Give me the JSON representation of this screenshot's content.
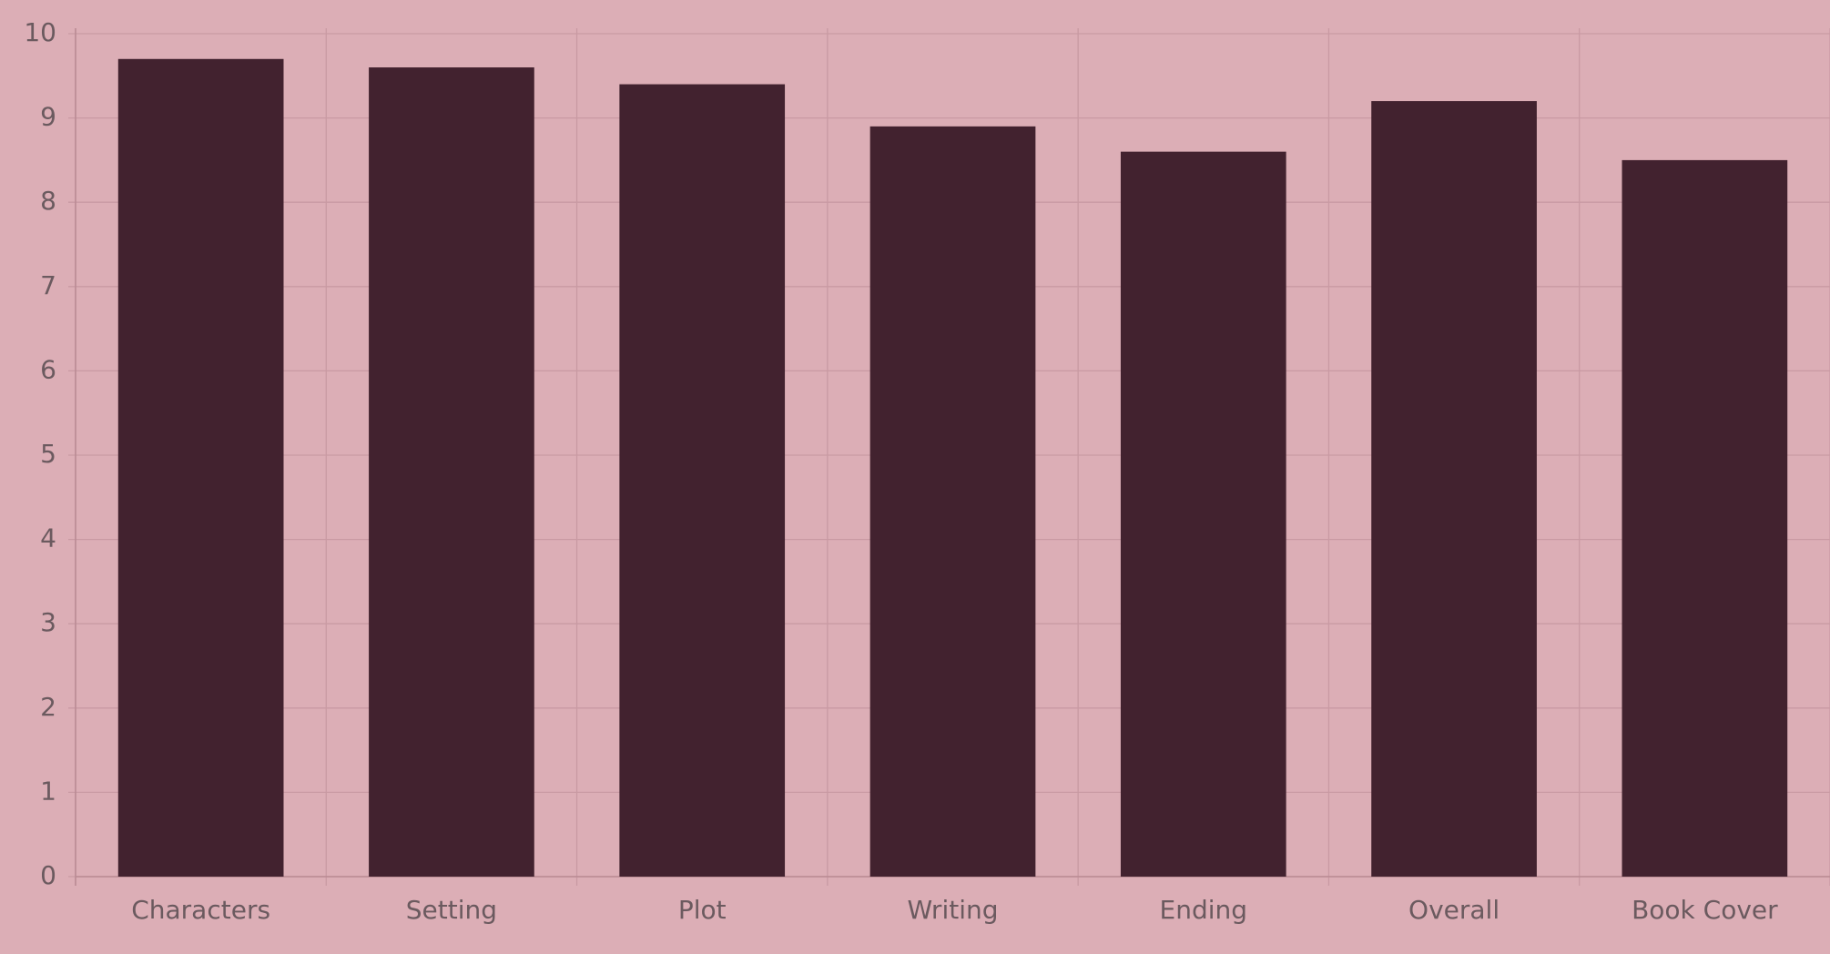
{
  "chart_data": {
    "type": "bar",
    "categories": [
      "Characters",
      "Setting",
      "Plot",
      "Writing",
      "Ending",
      "Overall",
      "Book Cover"
    ],
    "values": [
      9.7,
      9.6,
      9.4,
      8.9,
      8.6,
      9.2,
      8.5
    ],
    "color": "#42222f",
    "ylim": [
      0,
      10
    ],
    "yticks": [
      0,
      1,
      2,
      3,
      4,
      5,
      6,
      7,
      8,
      9,
      10
    ],
    "grid": true
  }
}
